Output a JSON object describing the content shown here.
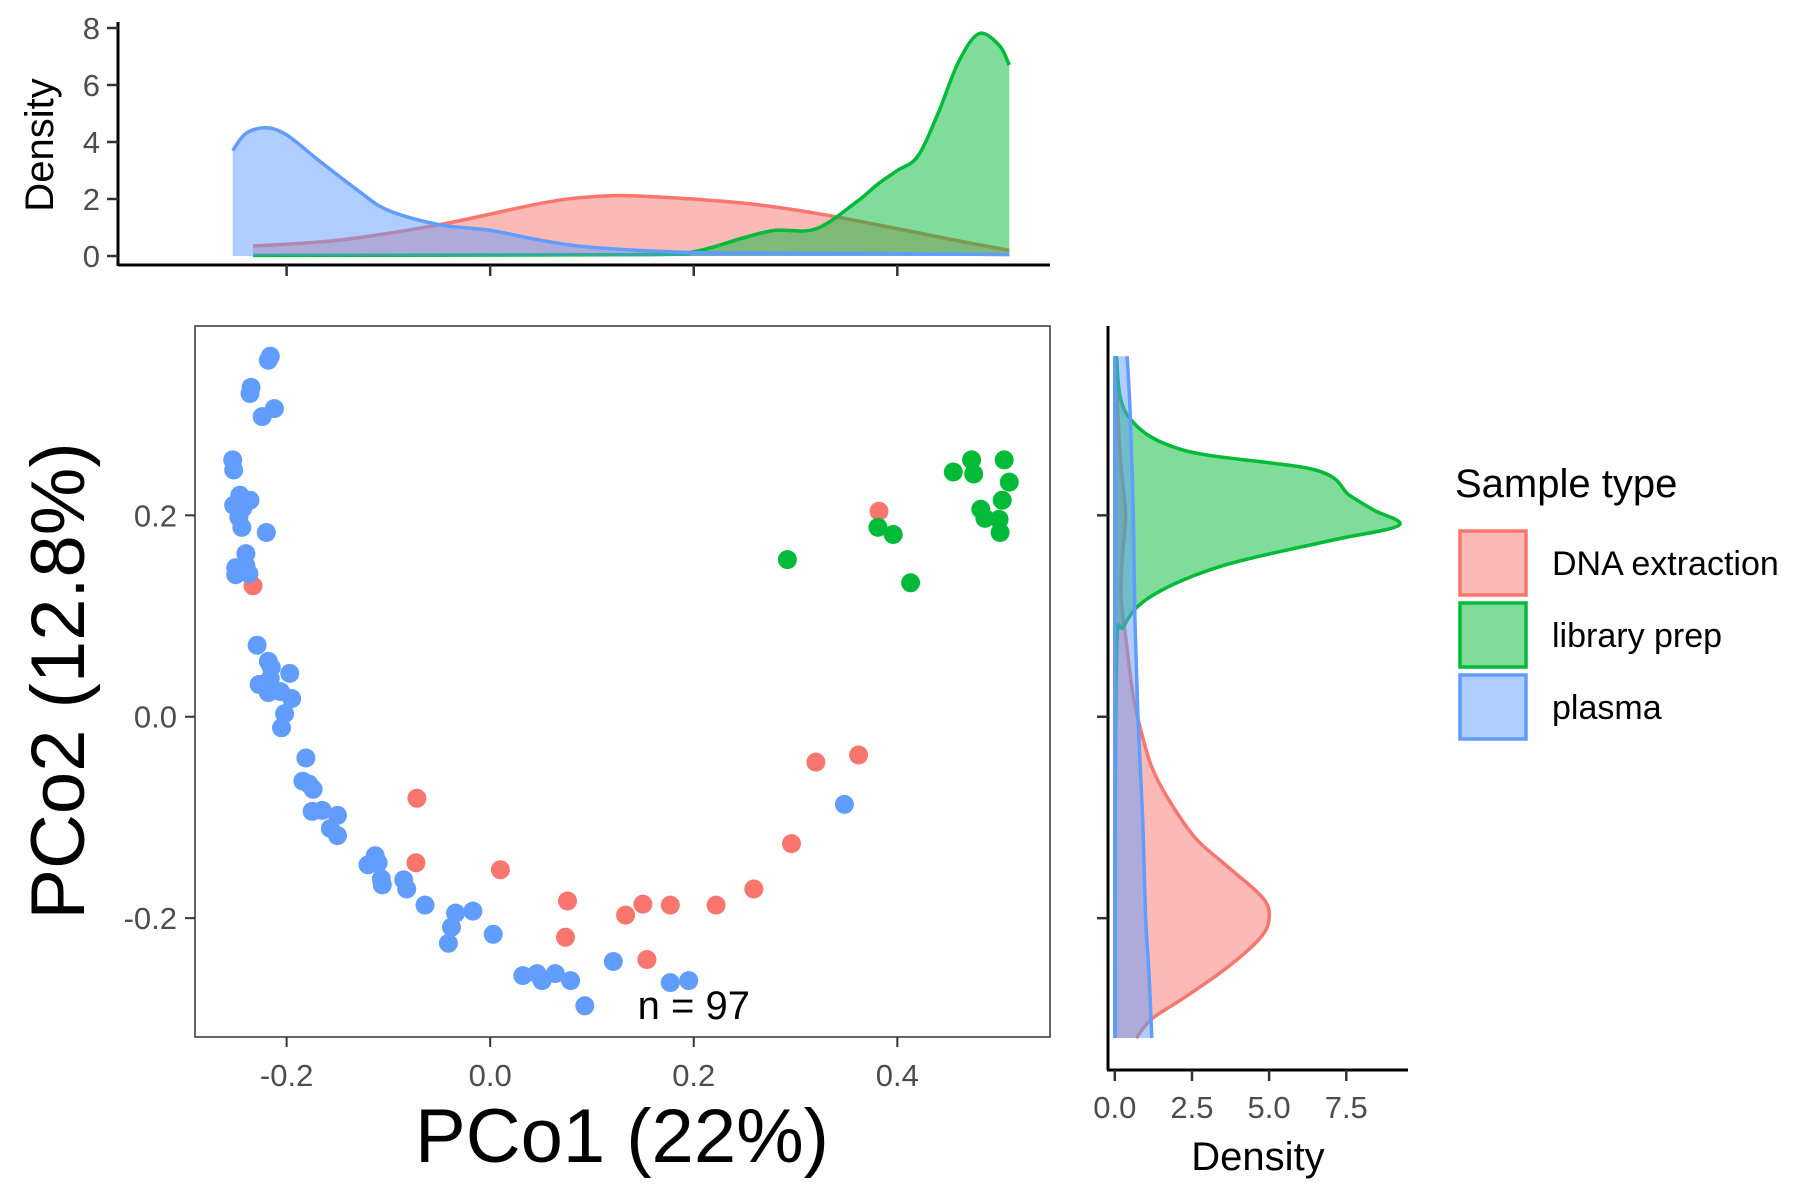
{
  "chart_data": [
    {
      "type": "scatter",
      "id": "main",
      "xlabel": "PCo1 (22%)",
      "ylabel": "PCo2 (12.8%)",
      "xlim": [
        -0.29,
        0.55
      ],
      "ylim": [
        -0.318,
        0.388
      ],
      "x_ticks": [
        -0.2,
        0.0,
        0.2,
        0.4
      ],
      "x_tick_labels": [
        "-0.2",
        "0.0",
        "0.2",
        "0.4"
      ],
      "y_ticks": [
        -0.2,
        0.0,
        0.2
      ],
      "y_tick_labels": [
        "-0.2",
        "0.0",
        "0.2"
      ],
      "annotation": "n = 97",
      "annotation_pos": [
        0.2,
        -0.286
      ],
      "grid": false,
      "series": [
        {
          "name": "DNA extraction",
          "color": "#F8766D",
          "points": [
            [
              -0.233,
              0.13
            ],
            [
              -0.072,
              -0.081
            ],
            [
              -0.073,
              -0.145
            ],
            [
              0.01,
              -0.152
            ],
            [
              0.076,
              -0.183
            ],
            [
              0.074,
              -0.219
            ],
            [
              0.133,
              -0.197
            ],
            [
              0.15,
              -0.186
            ],
            [
              0.154,
              -0.241
            ],
            [
              0.177,
              -0.187
            ],
            [
              0.222,
              -0.187
            ],
            [
              0.259,
              -0.171
            ],
            [
              0.296,
              -0.126
            ],
            [
              0.32,
              -0.045
            ],
            [
              0.362,
              -0.038
            ],
            [
              0.382,
              0.204
            ]
          ]
        },
        {
          "name": "library prep",
          "color": "#00BA38",
          "points": [
            [
              0.292,
              0.156
            ],
            [
              0.381,
              0.188
            ],
            [
              0.396,
              0.181
            ],
            [
              0.413,
              0.133
            ],
            [
              0.455,
              0.243
            ],
            [
              0.473,
              0.255
            ],
            [
              0.475,
              0.241
            ],
            [
              0.482,
              0.206
            ],
            [
              0.486,
              0.197
            ],
            [
              0.5,
              0.196
            ],
            [
              0.501,
              0.183
            ],
            [
              0.503,
              0.215
            ],
            [
              0.505,
              0.255
            ],
            [
              0.51,
              0.233
            ]
          ]
        },
        {
          "name": "plasma",
          "color": "#619CFF",
          "points": [
            [
              -0.216,
              0.358
            ],
            [
              -0.218,
              0.354
            ],
            [
              -0.235,
              0.327
            ],
            [
              -0.236,
              0.321
            ],
            [
              -0.212,
              0.306
            ],
            [
              -0.224,
              0.298
            ],
            [
              -0.253,
              0.255
            ],
            [
              -0.252,
              0.245
            ],
            [
              -0.246,
              0.22
            ],
            [
              -0.236,
              0.215
            ],
            [
              -0.252,
              0.21
            ],
            [
              -0.243,
              0.207
            ],
            [
              -0.247,
              0.198
            ],
            [
              -0.244,
              0.188
            ],
            [
              -0.22,
              0.183
            ],
            [
              -0.24,
              0.162
            ],
            [
              -0.24,
              0.15
            ],
            [
              -0.25,
              0.148
            ],
            [
              -0.25,
              0.141
            ],
            [
              -0.237,
              0.142
            ],
            [
              -0.229,
              0.071
            ],
            [
              -0.218,
              0.055
            ],
            [
              -0.215,
              0.049
            ],
            [
              -0.197,
              0.043
            ],
            [
              -0.216,
              0.038
            ],
            [
              -0.227,
              0.032
            ],
            [
              -0.218,
              0.024
            ],
            [
              -0.206,
              0.025
            ],
            [
              -0.195,
              0.018
            ],
            [
              -0.202,
              0.003
            ],
            [
              -0.205,
              -0.011
            ],
            [
              -0.181,
              -0.041
            ],
            [
              -0.184,
              -0.064
            ],
            [
              -0.178,
              -0.067
            ],
            [
              -0.174,
              -0.072
            ],
            [
              -0.175,
              -0.094
            ],
            [
              -0.165,
              -0.093
            ],
            [
              -0.15,
              -0.098
            ],
            [
              -0.157,
              -0.111
            ],
            [
              -0.15,
              -0.118
            ],
            [
              -0.12,
              -0.147
            ],
            [
              -0.113,
              -0.138
            ],
            [
              -0.11,
              -0.145
            ],
            [
              -0.107,
              -0.161
            ],
            [
              -0.106,
              -0.167
            ],
            [
              -0.085,
              -0.162
            ],
            [
              -0.082,
              -0.171
            ],
            [
              -0.064,
              -0.187
            ],
            [
              -0.034,
              -0.195
            ],
            [
              -0.017,
              -0.193
            ],
            [
              -0.038,
              -0.209
            ],
            [
              -0.041,
              -0.225
            ],
            [
              0.003,
              -0.216
            ],
            [
              0.032,
              -0.257
            ],
            [
              0.046,
              -0.255
            ],
            [
              0.051,
              -0.262
            ],
            [
              0.064,
              -0.255
            ],
            [
              0.079,
              -0.262
            ],
            [
              0.093,
              -0.287
            ],
            [
              0.121,
              -0.243
            ],
            [
              0.177,
              -0.264
            ],
            [
              0.195,
              -0.262
            ],
            [
              0.348,
              -0.087
            ]
          ]
        }
      ]
    },
    {
      "type": "area",
      "id": "top-density",
      "ylabel": "Density",
      "ylim": [
        0,
        8
      ],
      "y_ticks": [
        0,
        2,
        4,
        6,
        8
      ],
      "y_tick_labels": [
        "0",
        "2",
        "4",
        "6",
        "8"
      ],
      "xlim": [
        -0.29,
        0.55
      ],
      "x_ticks": [
        -0.2,
        0.0,
        0.2,
        0.4
      ],
      "series": [
        {
          "name": "DNA extraction",
          "color": "#F8766D",
          "x": [
            -0.233,
            -0.15,
            -0.05,
            0.05,
            0.1,
            0.15,
            0.25,
            0.32,
            0.38,
            0.45,
            0.51
          ],
          "y": [
            0.35,
            0.55,
            1.1,
            1.85,
            2.08,
            2.1,
            1.85,
            1.5,
            1.1,
            0.6,
            0.2
          ]
        },
        {
          "name": "library prep",
          "color": "#00BA38",
          "x": [
            -0.233,
            0.15,
            0.2,
            0.25,
            0.28,
            0.32,
            0.36,
            0.38,
            0.4,
            0.42,
            0.44,
            0.46,
            0.48,
            0.5,
            0.51
          ],
          "y": [
            0.02,
            0.05,
            0.15,
            0.65,
            0.9,
            0.95,
            1.9,
            2.5,
            3.0,
            3.5,
            5.0,
            6.8,
            7.8,
            7.4,
            6.7
          ]
        },
        {
          "name": "plasma",
          "color": "#619CFF",
          "x": [
            -0.253,
            -0.24,
            -0.22,
            -0.2,
            -0.17,
            -0.13,
            -0.1,
            -0.05,
            0.0,
            0.05,
            0.1,
            0.2,
            0.3,
            0.4,
            0.51
          ],
          "y": [
            3.7,
            4.3,
            4.5,
            4.25,
            3.4,
            2.3,
            1.6,
            1.1,
            0.9,
            0.55,
            0.3,
            0.12,
            0.1,
            0.08,
            0.05
          ]
        }
      ]
    },
    {
      "type": "area",
      "id": "right-density",
      "xlabel": "Density",
      "xlim": [
        -0.22,
        9.5
      ],
      "x_ticks": [
        0,
        2.5,
        5,
        7.5
      ],
      "x_tick_labels": [
        "0.0",
        "2.5",
        "5.0",
        "7.5"
      ],
      "ylim": [
        -0.318,
        0.388
      ],
      "y_ticks": [
        -0.2,
        0.0,
        0.2
      ],
      "orientation": "vertical",
      "series": [
        {
          "name": "DNA extraction",
          "color": "#F8766D",
          "y": [
            -0.319,
            -0.3,
            -0.28,
            -0.25,
            -0.22,
            -0.2,
            -0.18,
            -0.15,
            -0.12,
            -0.08,
            -0.05,
            -0.02,
            0.02,
            0.08,
            0.12,
            0.16,
            0.2,
            0.25,
            0.3,
            0.358
          ],
          "d": [
            0.7,
            1.2,
            2.2,
            3.6,
            4.7,
            5.0,
            4.8,
            3.7,
            2.6,
            1.7,
            1.2,
            0.9,
            0.6,
            0.35,
            0.2,
            0.25,
            0.35,
            0.2,
            0.1,
            0.05
          ]
        },
        {
          "name": "library prep",
          "color": "#00BA38",
          "y": [
            -0.319,
            0.05,
            0.09,
            0.12,
            0.15,
            0.175,
            0.19,
            0.205,
            0.22,
            0.245,
            0.265,
            0.3,
            0.358
          ],
          "d": [
            0.01,
            0.05,
            0.3,
            1.2,
            3.5,
            7.0,
            9.2,
            8.4,
            7.6,
            6.5,
            2.2,
            0.4,
            0.05
          ]
        },
        {
          "name": "plasma",
          "color": "#619CFF",
          "y": [
            -0.319,
            -0.25,
            -0.2,
            -0.1,
            0.0,
            0.1,
            0.2,
            0.3,
            0.358
          ],
          "d": [
            1.2,
            1.1,
            1.0,
            0.9,
            0.75,
            0.65,
            0.6,
            0.5,
            0.4
          ]
        }
      ]
    }
  ],
  "legend": {
    "title": "Sample type",
    "items": [
      {
        "label": "DNA extraction",
        "color": "#F8766D"
      },
      {
        "label": "library prep",
        "color": "#00BA38"
      },
      {
        "label": "plasma",
        "color": "#619CFF"
      }
    ]
  }
}
